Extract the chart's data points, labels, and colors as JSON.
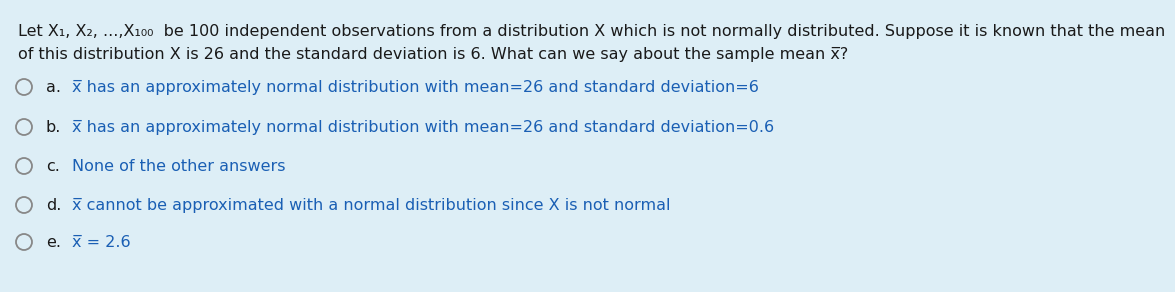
{
  "background_color": "#ddeef6",
  "text_color": "#1a1a1a",
  "blue_color": "#1a5fb4",
  "title_line1": "Let X₁, X₂, ...,X₁₀₀  be 100 independent observations from a distribution X which is not normally distributed. Suppose it is known that the mean",
  "title_line2": "of this distribution X is 26 and the standard deviation is 6. What can we say about the sample mean x̅?",
  "options": [
    {
      "label": "a.",
      "text": "x̅ has an approximately normal distribution with mean=26 and standard deviation=6"
    },
    {
      "label": "b.",
      "text": "x̅ has an approximately normal distribution with mean=26 and standard deviation=0.6"
    },
    {
      "label": "c.",
      "text": "None of the other answers"
    },
    {
      "label": "d.",
      "text": "x̅ cannot be approximated with a normal distribution since X is not normal"
    },
    {
      "label": "e.",
      "text": "x̅ = 2.6"
    }
  ],
  "font_size": 11.5,
  "title_font_size": 11.5
}
